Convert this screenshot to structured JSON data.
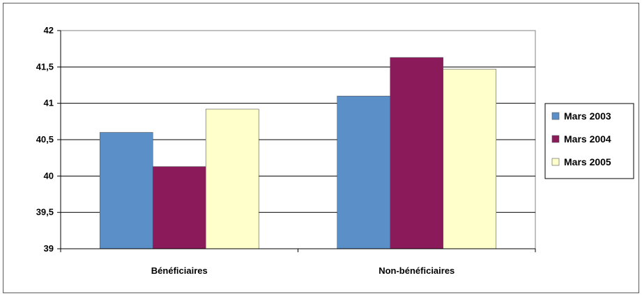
{
  "chart_data": {
    "type": "bar",
    "categories": [
      "Bénéficiaires",
      "Non-bénéficiaires"
    ],
    "series": [
      {
        "name": "Mars 2003",
        "color": "#5b8fc7",
        "values": [
          40.6,
          41.1
        ]
      },
      {
        "name": "Mars 2004",
        "color": "#8b1a5a",
        "values": [
          40.13,
          41.63
        ]
      },
      {
        "name": "Mars 2005",
        "color": "#ffffcc",
        "values": [
          40.92,
          41.47
        ]
      }
    ],
    "title": "",
    "xlabel": "",
    "ylabel": "",
    "ylim": [
      39,
      42
    ],
    "yticks": [
      39,
      39.5,
      40,
      40.5,
      41,
      41.5,
      42
    ],
    "ytick_labels": [
      "39",
      "39,5",
      "40",
      "40,5",
      "41",
      "41,5",
      "42"
    ],
    "grid": true,
    "legend_position": "right"
  }
}
